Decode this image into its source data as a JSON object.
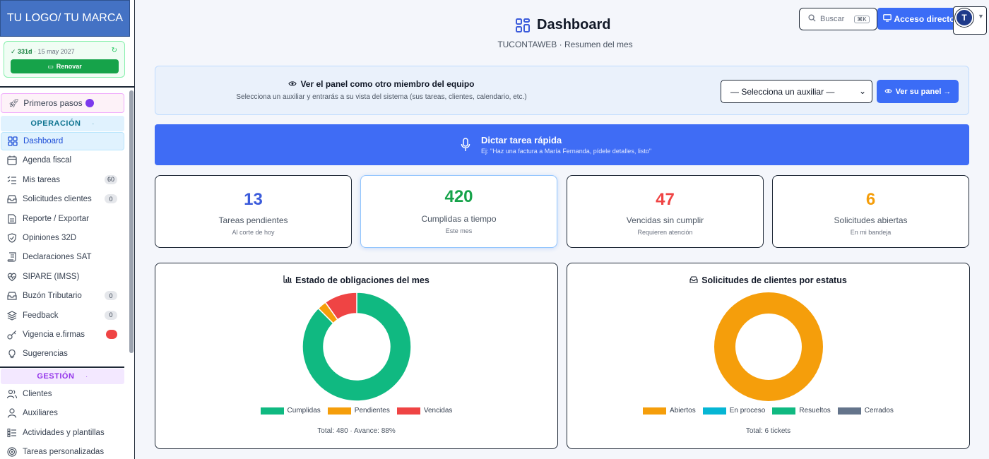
{
  "brand": {
    "logo_text": "TU LOGO/ TU MARCA"
  },
  "license": {
    "days": "✓ 331d",
    "date": " · 15 may 2027",
    "renew_label": "Renovar"
  },
  "sidebar": {
    "first_steps": "Primeros pasos",
    "operacion_label": "OPERACIÓN",
    "gestion_label": "GESTIÓN",
    "items": [
      {
        "label": "Dashboard",
        "icon": "grid-icon"
      },
      {
        "label": "Agenda fiscal",
        "icon": "calendar-icon"
      },
      {
        "label": "Mis tareas",
        "icon": "checklist-icon",
        "badge": "60"
      },
      {
        "label": "Solicitudes clientes",
        "icon": "inbox-icon",
        "badge": "0"
      },
      {
        "label": "Reporte / Exportar",
        "icon": "document-icon"
      },
      {
        "label": "Opiniones 32D",
        "icon": "shield-icon"
      },
      {
        "label": "Declaraciones SAT",
        "icon": "scroll-icon"
      },
      {
        "label": "SIPARE (IMSS)",
        "icon": "heartbeat-icon"
      },
      {
        "label": "Buzón Tributario",
        "icon": "mailbox-icon",
        "badge": "0"
      },
      {
        "label": "Feedback",
        "icon": "layers-icon",
        "badge": "0"
      },
      {
        "label": "Vigencia e.firmas",
        "icon": "key-icon",
        "badge": ""
      },
      {
        "label": "Sugerencias",
        "icon": "lightbulb-icon"
      }
    ],
    "gestion_items": [
      {
        "label": "Clientes",
        "icon": "users-icon"
      },
      {
        "label": "Auxiliares",
        "icon": "user-icon"
      },
      {
        "label": "Actividades y plantillas",
        "icon": "list-icon"
      },
      {
        "label": "Tareas personalizadas",
        "icon": "target-icon"
      }
    ]
  },
  "header": {
    "title": "Dashboard",
    "subtitle": "TUCONTAWEB · Resumen del mes",
    "search_placeholder": "Buscar",
    "search_shortcut": "⌘K",
    "direct_access": "Acceso directo",
    "avatar_initial": "T"
  },
  "member_panel": {
    "title": "Ver el panel como otro miembro del equipo",
    "subtitle": "Selecciona un auxiliar y entrarás a su vista del sistema (sus tareas, clientes, calendario, etc.)",
    "select_value": "— Selecciona un auxiliar —",
    "button": "Ver su panel →"
  },
  "dictate": {
    "title": "Dictar tarea rápida",
    "example": "Ej: \"Haz una factura a María Fernanda, pídele detalles, listo\""
  },
  "stats": [
    {
      "value": "13",
      "label": "Tareas pendientes",
      "note": "Al corte de hoy",
      "color": "#3b5bdb"
    },
    {
      "value": "420",
      "label": "Cumplidas a tiempo",
      "note": "Este mes",
      "color": "#16a34a"
    },
    {
      "value": "47",
      "label": "Vencidas sin cumplir",
      "note": "Requieren atención",
      "color": "#ef4444"
    },
    {
      "value": "6",
      "label": "Solicitudes abiertas",
      "note": "En mi bandeja",
      "color": "#f59e0b"
    }
  ],
  "chart_data": [
    {
      "type": "pie",
      "title": "Estado de obligaciones del mes",
      "categories": [
        "Cumplidas",
        "Pendientes",
        "Vencidas"
      ],
      "values": [
        420,
        13,
        47
      ],
      "colors": [
        "#10b981",
        "#f59e0b",
        "#ef4444"
      ],
      "donut": true,
      "legend": "bottom",
      "footer": "Total: 480 · Avance: 88%"
    },
    {
      "type": "pie",
      "title": "Solicitudes de clientes por estatus",
      "categories": [
        "Abiertos",
        "En proceso",
        "Resueltos",
        "Cerrados"
      ],
      "values": [
        6,
        0,
        0,
        0
      ],
      "colors": [
        "#f59e0b",
        "#06b6d4",
        "#10b981",
        "#64748b"
      ],
      "donut": true,
      "legend": "bottom",
      "footer": "Total: 6 tickets"
    }
  ]
}
